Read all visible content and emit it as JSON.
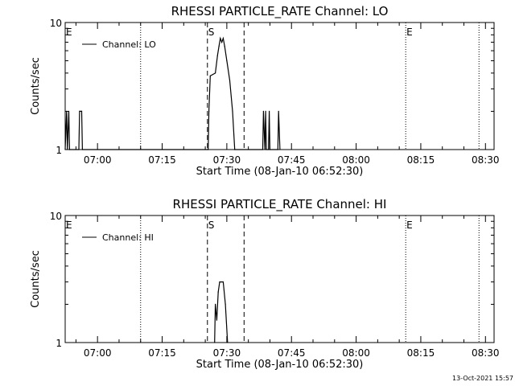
{
  "footer": "13-Oct-2021 15:57",
  "chart_data": [
    {
      "type": "line",
      "title": "RHESSI PARTICLE_RATE Channel: LO",
      "xlabel": "Start Time (08-Jan-10 06:52:30)",
      "ylabel": "Counts/sec",
      "legend": "Channel: LO",
      "legend_position": "top-left",
      "y_scale": "log",
      "ylim": [
        1,
        10
      ],
      "y_tick_labels": [
        "1",
        "10"
      ],
      "xlim": [
        "06:52:30",
        "08:32:00"
      ],
      "x_tick_labels": [
        "07:00",
        "07:15",
        "07:30",
        "07:45",
        "08:00",
        "08:15",
        "08:30"
      ],
      "markers": [
        {
          "label": "E",
          "time": "06:52:30",
          "style": "dotted"
        },
        {
          "label": "",
          "time": "07:10:00",
          "style": "dotted"
        },
        {
          "label": "S",
          "time": "07:25:30",
          "style": "dashed"
        },
        {
          "label": "",
          "time": "07:34:00",
          "style": "dashed"
        },
        {
          "label": "E",
          "time": "08:11:30",
          "style": "dotted"
        },
        {
          "label": "",
          "time": "08:28:30",
          "style": "dotted"
        }
      ],
      "series": [
        {
          "points": [
            [
              "06:52:30",
              1
            ],
            [
              "06:52:50",
              2
            ],
            [
              "06:53:00",
              1
            ],
            [
              "06:53:20",
              2
            ],
            [
              "06:53:30",
              1
            ],
            [
              "06:55:40",
              1
            ],
            [
              "06:55:50",
              2
            ],
            [
              "06:56:20",
              2
            ],
            [
              "06:56:30",
              1
            ],
            [
              "07:25:40",
              1
            ],
            [
              "07:25:50",
              2
            ],
            [
              "07:26:10",
              3.8
            ],
            [
              "07:27:20",
              4
            ],
            [
              "07:27:50",
              5.5
            ],
            [
              "07:28:10",
              6.5
            ],
            [
              "07:28:30",
              7.5
            ],
            [
              "07:28:50",
              7
            ],
            [
              "07:29:10",
              7.5
            ],
            [
              "07:29:30",
              6.5
            ],
            [
              "07:30:00",
              5
            ],
            [
              "07:30:40",
              3.5
            ],
            [
              "07:31:20",
              2
            ],
            [
              "07:31:50",
              1
            ],
            [
              "07:38:20",
              1
            ],
            [
              "07:38:30",
              2
            ],
            [
              "07:38:50",
              1
            ],
            [
              "07:39:00",
              2
            ],
            [
              "07:39:10",
              1
            ],
            [
              "07:39:40",
              1
            ],
            [
              "07:39:50",
              2
            ],
            [
              "07:40:00",
              1
            ],
            [
              "07:41:50",
              1
            ],
            [
              "07:42:00",
              2
            ],
            [
              "07:42:20",
              1
            ]
          ]
        }
      ]
    },
    {
      "type": "line",
      "title": "RHESSI PARTICLE_RATE Channel: HI",
      "xlabel": "Start Time (08-Jan-10 06:52:30)",
      "ylabel": "Counts/sec",
      "legend": "Channel: HI",
      "legend_position": "top-left",
      "y_scale": "log",
      "ylim": [
        1,
        10
      ],
      "y_tick_labels": [
        "1",
        "10"
      ],
      "xlim": [
        "06:52:30",
        "08:32:00"
      ],
      "x_tick_labels": [
        "07:00",
        "07:15",
        "07:30",
        "07:45",
        "08:00",
        "08:15",
        "08:30"
      ],
      "markers": [
        {
          "label": "E",
          "time": "06:52:30",
          "style": "dotted"
        },
        {
          "label": "",
          "time": "07:10:00",
          "style": "dotted"
        },
        {
          "label": "S",
          "time": "07:25:30",
          "style": "dashed"
        },
        {
          "label": "",
          "time": "07:34:00",
          "style": "dashed"
        },
        {
          "label": "E",
          "time": "08:11:30",
          "style": "dotted"
        },
        {
          "label": "",
          "time": "08:28:30",
          "style": "dotted"
        }
      ],
      "series": [
        {
          "points": [
            [
              "07:27:10",
              1
            ],
            [
              "07:27:20",
              2
            ],
            [
              "07:27:40",
              1.5
            ],
            [
              "07:28:00",
              2.5
            ],
            [
              "07:28:20",
              3
            ],
            [
              "07:29:10",
              3
            ],
            [
              "07:29:40",
              2
            ],
            [
              "07:30:10",
              1
            ]
          ]
        }
      ]
    }
  ]
}
